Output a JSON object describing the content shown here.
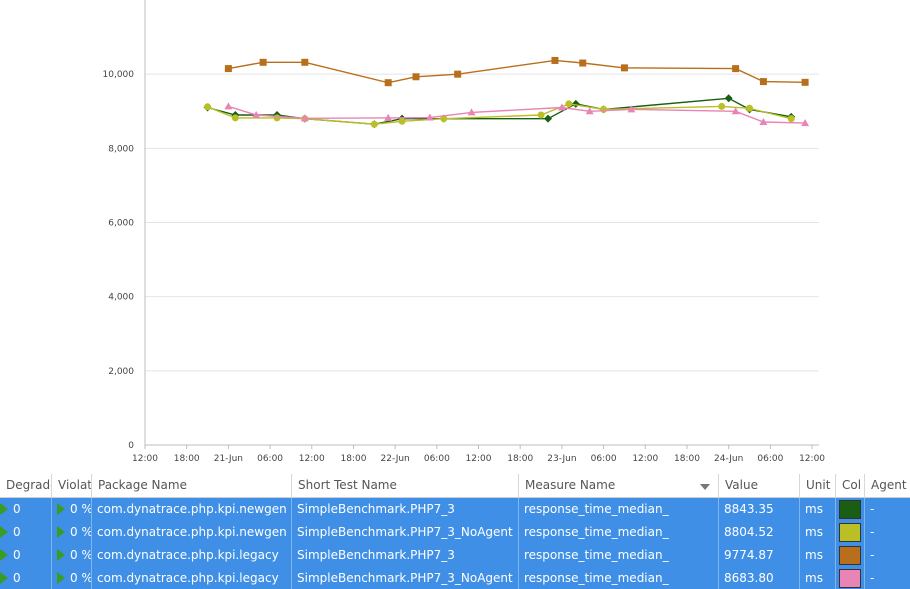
{
  "chart_data": {
    "type": "line",
    "title": "",
    "xlabel": "",
    "ylabel": "",
    "ylim": [
      0,
      12000
    ],
    "y_ticks": [
      "0",
      "2,000",
      "4,000",
      "6,000",
      "8,000",
      "10,000"
    ],
    "y_tick_values": [
      0,
      2000,
      4000,
      6000,
      8000,
      10000
    ],
    "x_ticks": [
      "12:00",
      "18:00",
      "21-Jun",
      "06:00",
      "12:00",
      "18:00",
      "22-Jun",
      "06:00",
      "12:00",
      "18:00",
      "23-Jun",
      "06:00",
      "12:00",
      "18:00",
      "24-Jun",
      "06:00",
      "12:00"
    ],
    "x_tick_hours": [
      12,
      18,
      24,
      30,
      36,
      42,
      48,
      54,
      60,
      66,
      72,
      78,
      84,
      90,
      96,
      102,
      108
    ],
    "xlim_hours": [
      12,
      109
    ],
    "grid": true,
    "legend": "none",
    "series": [
      {
        "color": "#1a5e14",
        "marker": "diamond",
        "x": [
          21,
          25,
          31,
          35,
          45,
          49,
          55,
          70,
          74,
          78,
          96,
          99,
          105
        ],
        "y": [
          9100,
          8900,
          8900,
          8800,
          8650,
          8800,
          8800,
          8800,
          9200,
          9050,
          9350,
          9050,
          8850
        ]
      },
      {
        "color": "#b9bf24",
        "marker": "circle",
        "x": [
          21,
          25,
          31,
          35,
          45,
          49,
          55,
          69,
          73,
          78,
          95,
          99,
          105
        ],
        "y": [
          9120,
          8820,
          8820,
          8800,
          8650,
          8730,
          8800,
          8900,
          9200,
          9050,
          9130,
          9080,
          8800
        ]
      },
      {
        "color": "#b86f1c",
        "marker": "square",
        "x": [
          24,
          29,
          35,
          47,
          51,
          57,
          71,
          75,
          81,
          97,
          101,
          107
        ],
        "y": [
          10150,
          10320,
          10320,
          9770,
          9930,
          10000,
          10370,
          10300,
          10170,
          10150,
          9800,
          9780
        ]
      },
      {
        "color": "#e884b6",
        "marker": "triangle",
        "x": [
          24,
          28,
          35,
          47,
          53,
          59,
          72,
          76,
          82,
          97,
          101,
          107
        ],
        "y": [
          9130,
          8900,
          8810,
          8820,
          8830,
          8970,
          9100,
          9000,
          9050,
          9000,
          8710,
          8680
        ]
      }
    ]
  },
  "table": {
    "columns": [
      "Degrade",
      "Violat",
      "Package Name",
      "Short Test Name",
      "Measure Name",
      "Value",
      "Unit",
      "Col",
      "Agent"
    ],
    "rows": [
      {
        "degrade": "0",
        "violat": "0 %",
        "package": "com.dynatrace.php.kpi.newgen",
        "test": "SimpleBenchmark.PHP7_3",
        "measure": "response_time_median_",
        "value": "8843.35",
        "unit": "ms",
        "color": "#1a5e14",
        "agent": "-"
      },
      {
        "degrade": "0",
        "violat": "0 %",
        "package": "com.dynatrace.php.kpi.newgen",
        "test": "SimpleBenchmark.PHP7_3_NoAgent",
        "measure": "response_time_median_",
        "value": "8804.52",
        "unit": "ms",
        "color": "#b9bf24",
        "agent": "-"
      },
      {
        "degrade": "0",
        "violat": "0 %",
        "package": "com.dynatrace.php.kpi.legacy",
        "test": "SimpleBenchmark.PHP7_3",
        "measure": "response_time_median_",
        "value": "9774.87",
        "unit": "ms",
        "color": "#b86f1c",
        "agent": "-"
      },
      {
        "degrade": "0",
        "violat": "0 %",
        "package": "com.dynatrace.php.kpi.legacy",
        "test": "SimpleBenchmark.PHP7_3_NoAgent",
        "measure": "response_time_median_",
        "value": "8683.80",
        "unit": "ms",
        "color": "#e884b6",
        "agent": "-"
      }
    ]
  },
  "icons": {
    "status": "play-triangle-icon",
    "sort": "sort-descending-icon"
  }
}
